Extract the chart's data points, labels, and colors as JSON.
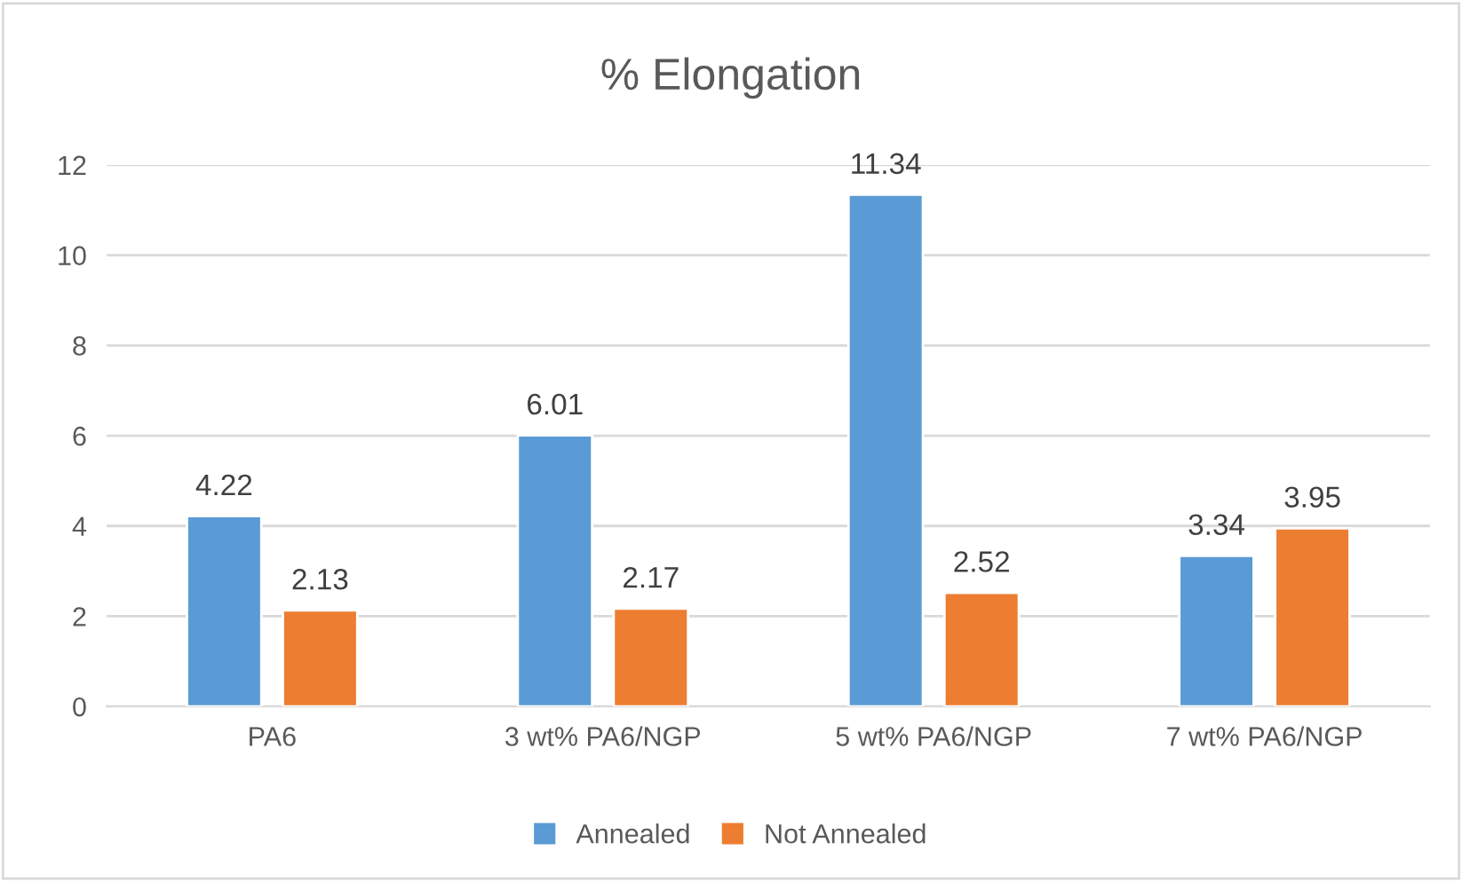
{
  "chart_data": {
    "type": "bar",
    "title": "% Elongation",
    "categories": [
      "PA6",
      "3 wt% PA6/NGP",
      "5 wt% PA6/NGP",
      "7 wt% PA6/NGP"
    ],
    "series": [
      {
        "name": "Annealed",
        "color": "#5b9bd5",
        "values": [
          4.22,
          6.01,
          11.34,
          3.34
        ]
      },
      {
        "name": "Not Annealed",
        "color": "#ed7d31",
        "values": [
          2.13,
          2.17,
          2.52,
          3.95
        ]
      }
    ],
    "ylim": [
      0,
      12
    ],
    "yticks": [
      0,
      2,
      4,
      6,
      8,
      10,
      12
    ],
    "grid": "y",
    "legend": "bottom",
    "data_labels": true
  }
}
